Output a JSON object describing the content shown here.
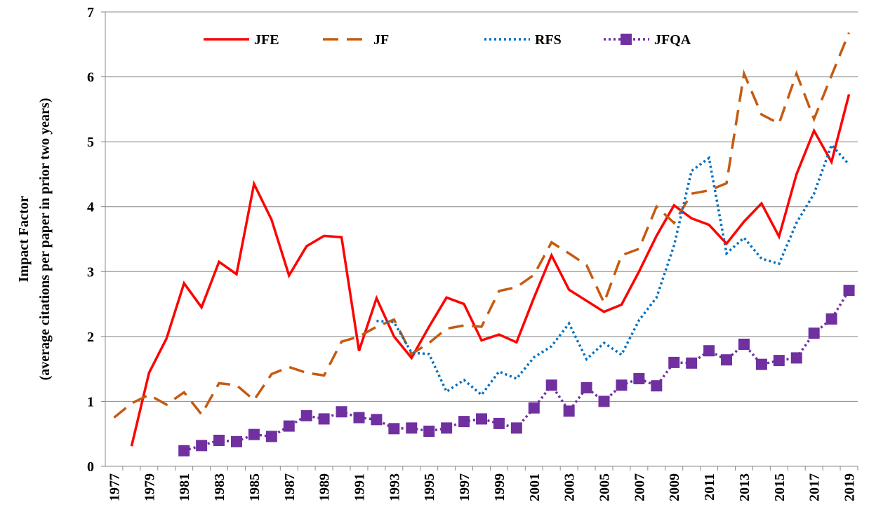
{
  "chart_data": {
    "type": "line",
    "ylabel": [
      "Impact Factor",
      "(average citations per paper in prior two years)"
    ],
    "categories": [
      "1977",
      null,
      "1979",
      null,
      "1981",
      null,
      "1983",
      null,
      "1985",
      null,
      "1987",
      null,
      "1989",
      null,
      "1991",
      null,
      "1993",
      null,
      "1995",
      null,
      "1997",
      null,
      "1999",
      null,
      "2001",
      null,
      "2003",
      null,
      "2005",
      null,
      "2007",
      null,
      "2009",
      null,
      "2011",
      null,
      "2013",
      null,
      "2015",
      null,
      "2017",
      null,
      "2019"
    ],
    "ylim": [
      0,
      7
    ],
    "yticks": [
      0,
      1,
      2,
      3,
      4,
      5,
      6,
      7
    ],
    "grid": true,
    "legend": "top",
    "series": [
      {
        "name": "JFE",
        "color": "#ff0000",
        "dash": "solid",
        "values": [
          null,
          0.31,
          1.44,
          1.97,
          2.82,
          2.45,
          3.15,
          2.96,
          4.35,
          3.8,
          2.94,
          3.39,
          3.55,
          3.53,
          1.78,
          2.59,
          2.0,
          1.67,
          2.15,
          2.6,
          2.5,
          1.94,
          2.03,
          1.91,
          2.6,
          3.25,
          2.72,
          2.55,
          2.38,
          2.49,
          3.0,
          3.55,
          4.02,
          3.82,
          3.72,
          3.43,
          3.77,
          4.05,
          3.54,
          4.5,
          5.17,
          4.69,
          5.73
        ]
      },
      {
        "name": "JF",
        "color": "#c55a11",
        "dash": "dashed",
        "values": [
          0.75,
          0.97,
          1.1,
          0.95,
          1.14,
          0.8,
          1.28,
          1.25,
          1.02,
          1.42,
          1.53,
          1.44,
          1.4,
          1.92,
          2.0,
          2.15,
          2.26,
          1.73,
          1.9,
          2.12,
          2.17,
          2.15,
          2.7,
          2.76,
          2.95,
          3.45,
          3.28,
          3.1,
          2.52,
          3.25,
          3.35,
          4.0,
          3.75,
          4.2,
          4.25,
          4.36,
          6.05,
          5.42,
          5.28,
          6.05,
          5.35,
          6.02,
          6.68
        ]
      },
      {
        "name": "RFS",
        "color": "#0070c0",
        "dash": "dotted",
        "values": [
          null,
          null,
          null,
          null,
          null,
          null,
          null,
          null,
          null,
          null,
          null,
          null,
          null,
          null,
          null,
          2.24,
          2.22,
          1.75,
          1.73,
          1.15,
          1.33,
          1.1,
          1.46,
          1.35,
          1.68,
          1.85,
          2.2,
          1.65,
          1.9,
          1.72,
          2.25,
          2.6,
          3.4,
          4.55,
          4.75,
          3.28,
          3.52,
          3.2,
          3.12,
          3.75,
          4.2,
          4.95,
          4.65
        ]
      },
      {
        "name": "JFQA",
        "color": "#7030a0",
        "dash": "dotted",
        "marker": "square",
        "values": [
          null,
          null,
          null,
          null,
          0.24,
          0.32,
          0.4,
          0.38,
          0.49,
          0.46,
          0.62,
          0.78,
          0.73,
          0.84,
          0.75,
          0.72,
          0.58,
          0.59,
          0.54,
          0.59,
          0.69,
          0.73,
          0.66,
          0.59,
          0.9,
          1.25,
          0.85,
          1.21,
          1.0,
          1.25,
          1.35,
          1.24,
          1.6,
          1.59,
          1.78,
          1.64,
          1.88,
          1.57,
          1.63,
          1.67,
          2.05,
          2.27,
          2.71
        ]
      }
    ]
  }
}
